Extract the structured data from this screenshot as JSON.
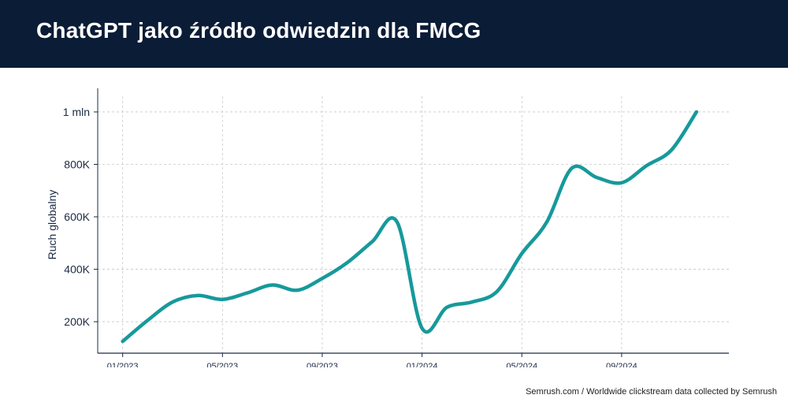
{
  "header": {
    "title": "ChatGPT jako źródło odwiedzin dla FMCG"
  },
  "footer": {
    "source": "Semrush.com / Worldwide clickstream data collected by Semrush"
  },
  "colors": {
    "header_bg": "#0b1c36",
    "line": "#17999b",
    "grid": "#c8c8c8",
    "axis": "#1b2a44"
  },
  "chart_data": {
    "type": "line",
    "title": "ChatGPT jako źródło odwiedzin dla FMCG",
    "xlabel": "",
    "ylabel": "Ruch globalny",
    "x_unit": "months since 01/2023",
    "xlim": [
      -1,
      24.3
    ],
    "ylim": [
      80000,
      1060000
    ],
    "x_ticks": [
      {
        "x": 0,
        "label": "01/2023"
      },
      {
        "x": 4,
        "label": "05/2023"
      },
      {
        "x": 8,
        "label": "09/2023"
      },
      {
        "x": 12,
        "label": "01/2024"
      },
      {
        "x": 16,
        "label": "05/2024"
      },
      {
        "x": 20,
        "label": "09/2024"
      }
    ],
    "y_ticks": [
      {
        "y": 200000,
        "label": "200K"
      },
      {
        "y": 400000,
        "label": "400K"
      },
      {
        "y": 600000,
        "label": "600K"
      },
      {
        "y": 800000,
        "label": "800K"
      },
      {
        "y": 1000000,
        "label": "1 mln"
      }
    ],
    "grid": true,
    "series": [
      {
        "name": "Ruch globalny",
        "x": [
          0,
          1,
          2,
          3,
          4,
          5,
          6,
          7,
          8,
          9,
          10,
          11,
          12,
          13,
          14,
          15,
          16,
          17,
          18,
          19,
          20,
          21,
          22,
          23
        ],
        "values": [
          125000,
          205000,
          275000,
          300000,
          285000,
          310000,
          340000,
          320000,
          365000,
          425000,
          505000,
          580000,
          175000,
          255000,
          275000,
          315000,
          460000,
          580000,
          785000,
          750000,
          730000,
          795000,
          855000,
          1000000
        ]
      }
    ]
  }
}
